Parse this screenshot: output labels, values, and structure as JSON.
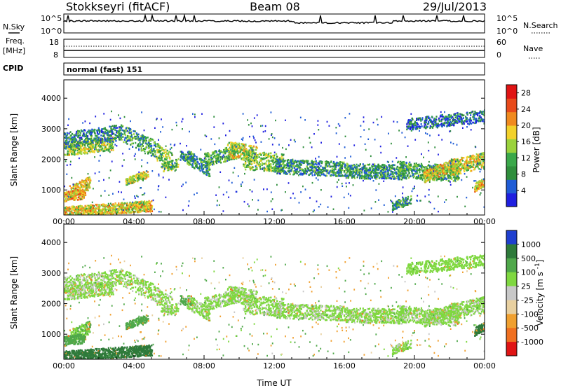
{
  "header": {
    "station": "Stokkseyri (fitACF)",
    "beam": "Beam 08",
    "date": "29/Jul/2013"
  },
  "side_labels": {
    "nsky": "N.Sky",
    "nsearch": "N.Search",
    "freq": "Freq.",
    "mhz": "[MHz]",
    "nave": "Nave",
    "cpid": "CPID",
    "program": "normal (fast) 151"
  },
  "ticks": {
    "nsky_left": [
      "10^5",
      "10^0"
    ],
    "nsky_right": [
      "10^5",
      "10^0"
    ],
    "freq_left": [
      "18",
      "8"
    ],
    "nave_right": [
      "60",
      "0"
    ]
  },
  "colors": {
    "power": [
      "#1f1fe0",
      "#1f5cd6",
      "#2f8e3c",
      "#3aa84a",
      "#9ad23c",
      "#f2d12a",
      "#f08a1e",
      "#e84a1a",
      "#e01414"
    ],
    "velocity": [
      "#1f3fcf",
      "#2e7a3a",
      "#4fa84a",
      "#7fd840",
      "#c8c8c8",
      "#e8d0a0",
      "#f0a030",
      "#f07020",
      "#e01414"
    ]
  },
  "chart_data": [
    {
      "type": "heatmap",
      "quantity": "Power",
      "xlabel": "",
      "ylabel": "Slant Range [km]",
      "x_ticks": [
        "00:00",
        "04:00",
        "08:00",
        "12:00",
        "16:00",
        "20:00",
        "00:00"
      ],
      "y_ticks": [
        1000,
        2000,
        3000,
        4000
      ],
      "ylim": [
        180,
        4600
      ],
      "colorbar": {
        "label": "Power [dB]",
        "ticks": [
          4,
          8,
          12,
          16,
          20,
          24,
          28
        ],
        "range": [
          0,
          30
        ]
      }
    },
    {
      "type": "heatmap",
      "quantity": "Velocity",
      "xlabel": "Time UT",
      "ylabel": "Slant Range [km]",
      "x_ticks": [
        "00:00",
        "04:00",
        "08:00",
        "12:00",
        "16:00",
        "20:00",
        "00:00"
      ],
      "y_ticks": [
        1000,
        2000,
        3000,
        4000
      ],
      "ylim": [
        180,
        4600
      ],
      "colorbar": {
        "label": "Velocity [m s^-1]",
        "ticks": [
          1000,
          500,
          100,
          25,
          -25,
          -100,
          -500,
          -1000
        ]
      }
    }
  ]
}
